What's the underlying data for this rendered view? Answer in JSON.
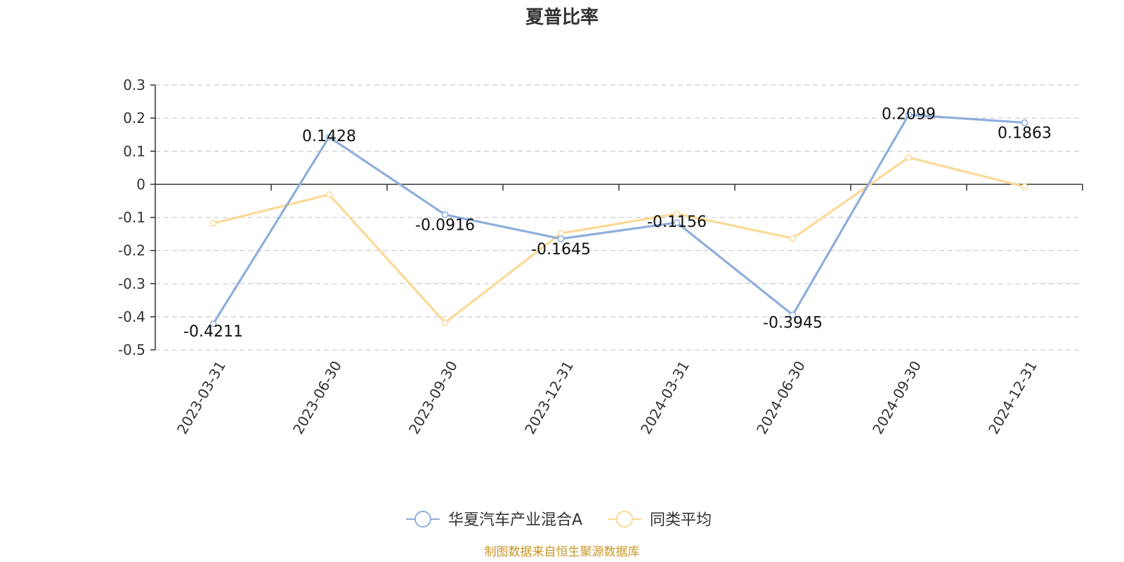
{
  "chart_data": {
    "type": "line",
    "title": "夏普比率",
    "x": [
      "2023-03-31",
      "2023-06-30",
      "2023-09-30",
      "2023-12-31",
      "2024-03-31",
      "2024-06-30",
      "2024-09-30",
      "2024-12-31"
    ],
    "series": [
      {
        "name": "华夏汽车产业混合A",
        "color": "#8eaedb",
        "values": [
          -0.4211,
          0.1428,
          -0.0916,
          -0.1645,
          -0.1156,
          -0.3945,
          0.2099,
          0.1863
        ],
        "labels": [
          "-0.4211",
          "0.1428",
          "-0.0916",
          "-0.1645",
          "-0.1156",
          "-0.3945",
          "0.2099",
          "0.1863"
        ]
      },
      {
        "name": "同类平均",
        "color": "#fbd996",
        "values": [
          -0.118,
          -0.031,
          -0.418,
          -0.148,
          -0.089,
          -0.163,
          0.081,
          -0.007
        ]
      }
    ],
    "ylim": [
      -0.5,
      0.3
    ],
    "yticks": [
      "0.3",
      "0.2",
      "0.1",
      "0",
      "-0.1",
      "-0.2",
      "-0.3",
      "-0.4",
      "-0.5"
    ],
    "grid": true,
    "legend_position": "bottom"
  },
  "footer": {
    "source": "制图数据来自恒生聚源数据库"
  }
}
